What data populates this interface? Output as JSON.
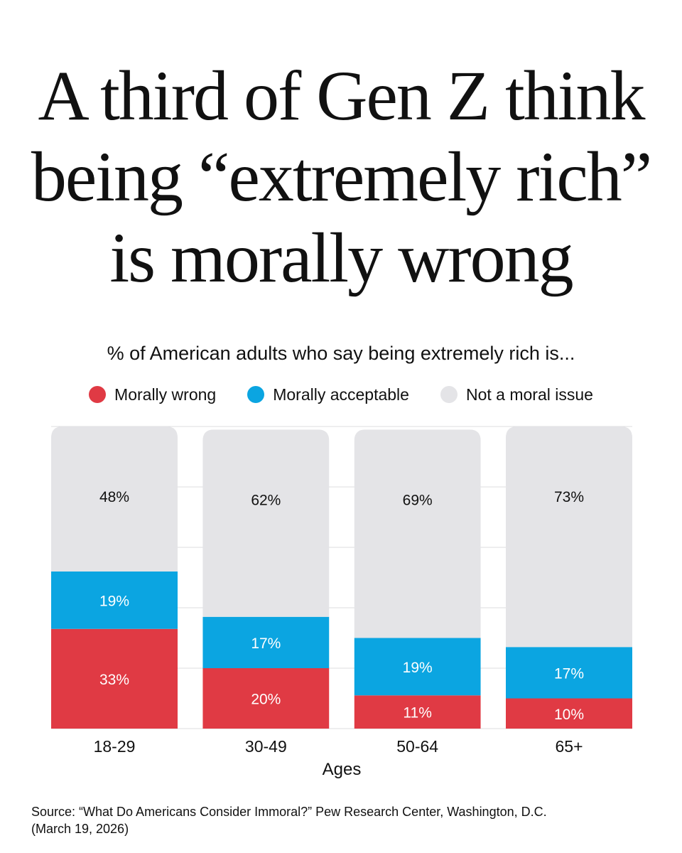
{
  "title_lines": [
    "A third of Gen Z think",
    "being “extremely rich”",
    "is morally wrong"
  ],
  "subtitle": "% of American adults who say being extremely rich is...",
  "legend": [
    {
      "label": "Morally wrong",
      "color": "#e03a44"
    },
    {
      "label": "Morally acceptable",
      "color": "#0ba5e1"
    },
    {
      "label": "Not a moral issue",
      "color": "#e4e4e7"
    }
  ],
  "source": "Source: “What Do Americans Consider Immoral?” Pew Research Center, Washington, D.C. (March 19, 2026)",
  "chart_data": {
    "type": "bar",
    "stacked": true,
    "categories": [
      "18-29",
      "30-49",
      "50-64",
      "65+"
    ],
    "xlabel": "Ages",
    "series": [
      {
        "name": "Morally wrong",
        "values": [
          33,
          20,
          11,
          10
        ],
        "labels": [
          "33%",
          "20%",
          "11%",
          "10%"
        ],
        "color": "#e03a44",
        "label_color": "#ffffff"
      },
      {
        "name": "Morally acceptable",
        "values": [
          19,
          17,
          19,
          17
        ],
        "labels": [
          "19%",
          "17%",
          "19%",
          "17%"
        ],
        "color": "#0ba5e1",
        "label_color": "#ffffff"
      },
      {
        "name": "Not a moral issue",
        "values": [
          48,
          62,
          69,
          73
        ],
        "labels": [
          "48%",
          "62%",
          "69%",
          "73%"
        ],
        "color": "#e4e4e7",
        "label_color": "#111111"
      }
    ],
    "ylim": [
      0,
      100
    ],
    "grid": true
  }
}
